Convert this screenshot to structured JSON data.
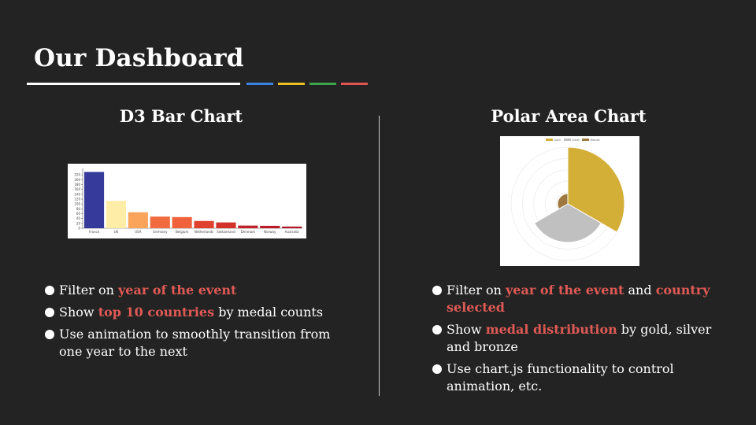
{
  "slide": {
    "title": "Our Dashboard",
    "left": {
      "heading": "D3 Bar Chart",
      "bullets": [
        {
          "parts": [
            {
              "text": "Filter on "
            },
            {
              "text": "year of the event",
              "hl": true
            }
          ]
        },
        {
          "parts": [
            {
              "text": "Show "
            },
            {
              "text": "top 10 countries",
              "hl": true
            },
            {
              "text": " by medal counts"
            }
          ]
        },
        {
          "parts": [
            {
              "text": "Use animation to smoothly transition from one year to the next"
            }
          ]
        }
      ]
    },
    "right": {
      "heading": "Polar Area Chart",
      "bullets": [
        {
          "parts": [
            {
              "text": "Filter on "
            },
            {
              "text": "year of the event",
              "hl": true
            },
            {
              "text": " and "
            },
            {
              "text": "country selected",
              "hl": true
            }
          ]
        },
        {
          "parts": [
            {
              "text": "Show "
            },
            {
              "text": "medal distribution",
              "hl": true
            },
            {
              "text": " by gold, silver and bronze"
            }
          ]
        },
        {
          "parts": [
            {
              "text": "Use chart.js functionality to control animation, etc."
            }
          ]
        }
      ]
    }
  },
  "chart_data": [
    {
      "type": "bar",
      "categories": [
        "France",
        "UK",
        "USA",
        "Germany",
        "Belgium",
        "Netherlands",
        "Switzerland",
        "Denmark",
        "Norway",
        "Australia"
      ],
      "values": [
        232,
        113,
        66,
        48,
        46,
        30,
        24,
        11,
        10,
        7
      ],
      "colors": [
        "#353a9b",
        "#fdeda7",
        "#f9a45a",
        "#f16b3f",
        "#f0623c",
        "#e0402e",
        "#d33228",
        "#c0212a",
        "#b91c28",
        "#b0172a"
      ],
      "ylim": [
        0,
        240
      ],
      "yticks": [
        "0",
        "20",
        "40",
        "60",
        "80",
        "100",
        "120",
        "140",
        "160",
        "180",
        "200",
        "220"
      ],
      "xlabel": "",
      "ylabel": ""
    },
    {
      "type": "polar_area",
      "legend": [
        "Gold",
        "Silver",
        "Bronze"
      ],
      "legend_position": "top",
      "colors": [
        "#d4af37",
        "#c0c0c0",
        "#9d7840"
      ],
      "values": [
        100,
        68,
        18
      ],
      "rmax": 100,
      "rings": 5
    }
  ]
}
